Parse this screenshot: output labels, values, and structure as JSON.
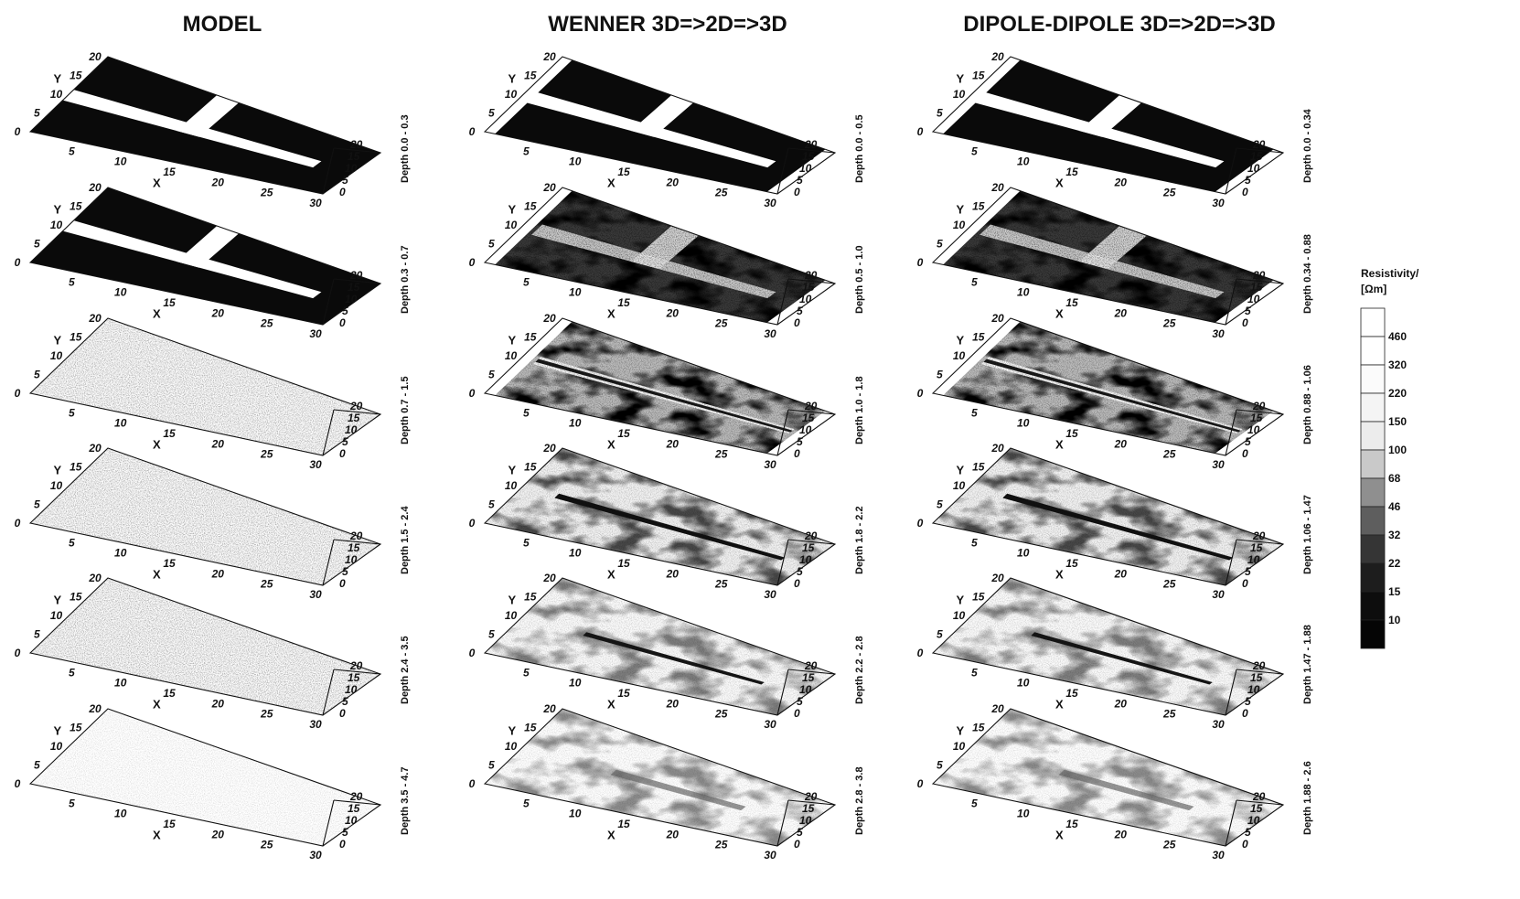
{
  "columns": [
    {
      "title": "MODEL",
      "depth_labels": [
        "Depth 0.0 - 0.3",
        "Depth 0.3 - 0.7",
        "Depth 0.7 - 1.5",
        "Depth 1.5 - 2.4",
        "Depth 2.4 - 3.5",
        "Depth 3.5 - 4.7"
      ],
      "slices": [
        {
          "pattern": "dark-t"
        },
        {
          "pattern": "dark-t"
        },
        {
          "pattern": "light"
        },
        {
          "pattern": "light"
        },
        {
          "pattern": "light"
        },
        {
          "pattern": "faint"
        }
      ]
    },
    {
      "title": "WENNER 3D=>2D=>3D",
      "depth_labels": [
        "Depth 0.0 - 0.5",
        "Depth 0.5 - 1.0",
        "Depth 1.0 - 1.8",
        "Depth 1.8 - 2.2",
        "Depth 2.2 - 2.8",
        "Depth 2.8 - 3.8"
      ],
      "slices": [
        {
          "pattern": "dark-t"
        },
        {
          "pattern": "mixed-t"
        },
        {
          "pattern": "mixed-line"
        },
        {
          "pattern": "line"
        },
        {
          "pattern": "line-short"
        },
        {
          "pattern": "faint-spots"
        }
      ]
    },
    {
      "title": "DIPOLE-DIPOLE 3D=>2D=>3D",
      "depth_labels": [
        "Depth 0.0 - 0.34",
        "Depth 0.34 - 0.88",
        "Depth 0.88 - 1.06",
        "Depth 1.06 - 1.47",
        "Depth 1.47 - 1.88",
        "Depth 1.88 - 2.6"
      ],
      "slices": [
        {
          "pattern": "dark-t"
        },
        {
          "pattern": "mixed-t"
        },
        {
          "pattern": "mixed-line"
        },
        {
          "pattern": "line"
        },
        {
          "pattern": "line-short"
        },
        {
          "pattern": "faint-spots"
        }
      ]
    }
  ],
  "axes": {
    "x_letter": "X",
    "y_letter": "Y",
    "x_ticks": [
      "5",
      "10",
      "15",
      "20",
      "25",
      "30"
    ],
    "y_ticks": [
      "0",
      "5",
      "10",
      "15",
      "20"
    ],
    "z_ticks": [
      "0",
      "5",
      "10",
      "15",
      "20"
    ]
  },
  "legend": {
    "title_line1": "Resistivity/",
    "title_line2": "[Ωm]",
    "values": [
      "460",
      "320",
      "220",
      "150",
      "100",
      "68",
      "46",
      "32",
      "22",
      "15",
      "10"
    ],
    "colors": [
      "#ffffff",
      "#ffffff",
      "#fbfbfb",
      "#f4f4f4",
      "#ececec",
      "#c9c9c9",
      "#8f8f8f",
      "#5e5e5e",
      "#353535",
      "#1d1d1d",
      "#0d0d0d",
      "#050505"
    ]
  }
}
